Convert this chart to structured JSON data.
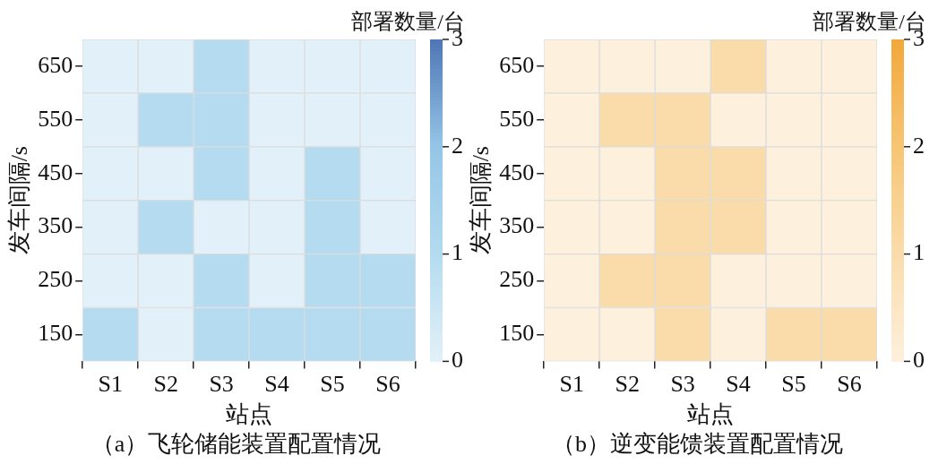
{
  "chart_data": [
    {
      "type": "heatmap",
      "title": "（a）飞轮储能装置配置情况",
      "xlabel": "站点",
      "ylabel": "发车间隔/s",
      "clabel": "部署数量/台",
      "categories": [
        "S1",
        "S2",
        "S3",
        "S4",
        "S5",
        "S6"
      ],
      "y_categories": [
        "650",
        "550",
        "450",
        "350",
        "250",
        "150"
      ],
      "cells": [
        [
          0,
          0,
          1,
          0,
          0,
          0
        ],
        [
          0,
          1,
          1,
          0,
          0,
          0
        ],
        [
          0,
          0,
          1,
          0,
          1,
          0
        ],
        [
          0,
          1,
          0,
          0,
          1,
          0
        ],
        [
          0,
          0,
          1,
          0,
          1,
          1
        ],
        [
          1,
          0,
          1,
          1,
          1,
          1
        ]
      ],
      "clim": [
        0,
        3
      ],
      "cticks": [
        0,
        1,
        2,
        3
      ],
      "colors": [
        "#e2f1f9",
        "#b4dbef",
        "#95c6e7",
        "#4f76b5"
      ]
    },
    {
      "type": "heatmap",
      "title": "（b）逆变能馈装置配置情况",
      "xlabel": "站点",
      "ylabel": "发车间隔/s",
      "clabel": "部署数量/台",
      "categories": [
        "S1",
        "S2",
        "S3",
        "S4",
        "S5",
        "S6"
      ],
      "y_categories": [
        "650",
        "550",
        "450",
        "350",
        "250",
        "150"
      ],
      "cells": [
        [
          0,
          0,
          0,
          1,
          0,
          0
        ],
        [
          0,
          1,
          1,
          0,
          0,
          0
        ],
        [
          0,
          0,
          1,
          1,
          0,
          0
        ],
        [
          0,
          0,
          1,
          1,
          0,
          0
        ],
        [
          0,
          1,
          1,
          0,
          0,
          0
        ],
        [
          0,
          0,
          1,
          0,
          1,
          1
        ]
      ],
      "clim": [
        0,
        3
      ],
      "cticks": [
        0,
        1,
        2,
        3
      ],
      "colors": [
        "#fdf0dc",
        "#fadcab",
        "#f7c574",
        "#f2a83a"
      ]
    }
  ]
}
